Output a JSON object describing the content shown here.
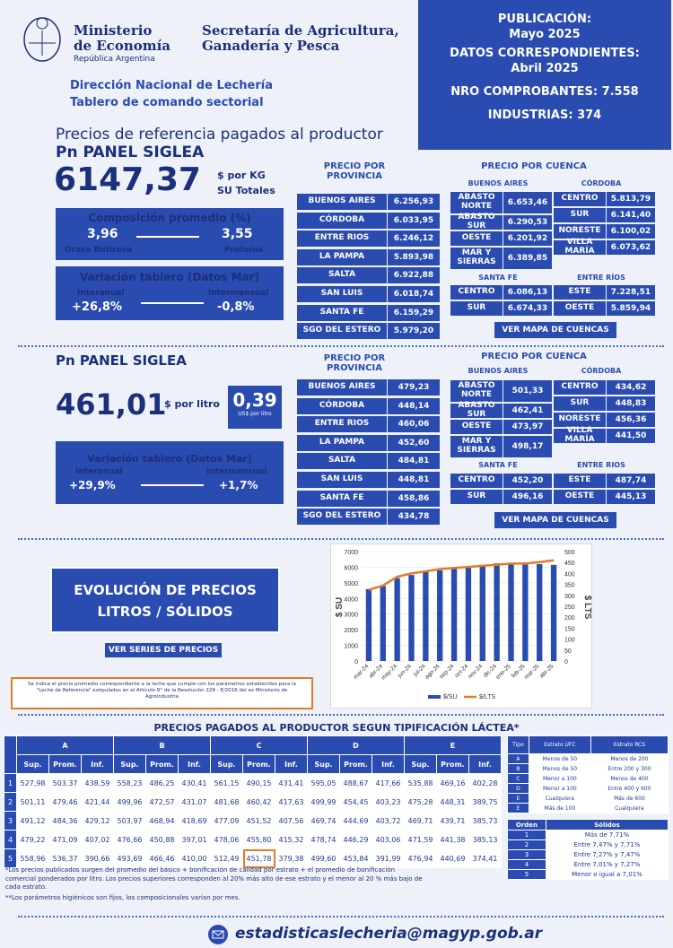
{
  "header": {
    "ministry": [
      "Ministerio",
      "de Economía"
    ],
    "republic": "República Argentina",
    "secretariat": [
      "Secretaría de Agricultura,",
      "Ganadería y Pesca"
    ],
    "direction": "Dirección Nacional de Lechería",
    "tablero": "Tablero de comando sectorial",
    "pub_label": "PUBLICACIÓN:",
    "pub_value": "Mayo 2025",
    "datos_label": "DATOS CORRESPONDIENTES:",
    "datos_value": "Abril 2025",
    "comprobantes": "NRO COMPROBANTES: 7.558",
    "industrias": "INDUSTRIAS: 374"
  },
  "section_title": "Precios de referencia pagados al productor",
  "solidos": {
    "panel_title": "Pn PANEL SIGLEA",
    "big_value": "6147,37",
    "unit": "$ por KG",
    "unit2": "SU Totales",
    "comp_title": "Composición promedio (%)",
    "grasa_val": "3,96",
    "grasa_lbl": "Grasa Butirosa",
    "prot_val": "3,55",
    "prot_lbl": "Proteína",
    "var_title": "Variación tablero (Datos Mar)",
    "ia_lbl": "Interanual",
    "ia_val": "+26,8%",
    "im_lbl": "Intermensual",
    "im_val": "-0,8%",
    "prov_title": "PRECIO POR PROVINCIA",
    "provinces": [
      {
        "name": "BUENOS AIRES",
        "value": "6.256,93"
      },
      {
        "name": "CÓRDOBA",
        "value": "6.033,95"
      },
      {
        "name": "ENTRE RIOS",
        "value": "6.246,12"
      },
      {
        "name": "LA PAMPA",
        "value": "5.893,98"
      },
      {
        "name": "SALTA",
        "value": "6.922,88"
      },
      {
        "name": "SAN LUIS",
        "value": "6.018,74"
      },
      {
        "name": "SANTA FE",
        "value": "6.159,29"
      },
      {
        "name": "SGO DEL ESTERO",
        "value": "5.979,20"
      }
    ],
    "cuenca_title": "PRECIO POR CUENCA",
    "ba_title": "BUENOS AIRES",
    "ba": [
      {
        "name": "ABASTO NORTE",
        "value": "6.653,46"
      },
      {
        "name": "ABASTO SUR",
        "value": "6.290,53"
      },
      {
        "name": "OESTE",
        "value": "6.201,92"
      },
      {
        "name": "MAR Y SIERRAS",
        "value": "6.389,85"
      }
    ],
    "cba_title": "CÓRDOBA",
    "cba": [
      {
        "name": "CENTRO",
        "value": "5.813,79"
      },
      {
        "name": "SUR",
        "value": "6.141,40"
      },
      {
        "name": "NORESTE",
        "value": "6.100,02"
      },
      {
        "name": "VILLA MARÍA",
        "value": "6.073,62"
      }
    ],
    "sf_title": "SANTA FE",
    "sf": [
      {
        "name": "CENTRO",
        "value": "6.086,13"
      },
      {
        "name": "SUR",
        "value": "6.674,33"
      }
    ],
    "er_title": "ENTRE RÍOS",
    "er": [
      {
        "name": "ESTE",
        "value": "7.228,51"
      },
      {
        "name": "OESTE",
        "value": "5.859,94"
      }
    ],
    "btn": "VER MAPA DE CUENCAS"
  },
  "litros": {
    "panel_title": "Pn PANEL SIGLEA",
    "big_value": "461,01",
    "unit": "$ por litro",
    "usd_val": "0,39",
    "usd_lbl": "US$ por litro",
    "var_title": "Variación tablero (Datos Mar)",
    "ia_lbl": "Interanual",
    "ia_val": "+29,9%",
    "im_lbl": "Intermensual",
    "im_val": "+1,7%",
    "prov_title": "PRECIO POR PROVINCIA",
    "provinces": [
      {
        "name": "BUENOS AIRES",
        "value": "479,23"
      },
      {
        "name": "CÓRDOBA",
        "value": "448,14"
      },
      {
        "name": "ENTRE RIOS",
        "value": "460,06"
      },
      {
        "name": "LA PAMPA",
        "value": "452,60"
      },
      {
        "name": "SALTA",
        "value": "484,81"
      },
      {
        "name": "SAN LUIS",
        "value": "448,81"
      },
      {
        "name": "SANTA FE",
        "value": "458,86"
      },
      {
        "name": "SGO DEL ESTERO",
        "value": "434,78"
      }
    ],
    "cuenca_title": "PRECIO POR CUENCA",
    "ba_title": "BUENOS AIRES",
    "ba": [
      {
        "name": "ABASTO NORTE",
        "value": "501,33"
      },
      {
        "name": "ABASTO SUR",
        "value": "462,41"
      },
      {
        "name": "OESTE",
        "value": "473,97"
      },
      {
        "name": "MAR Y SIERRAS",
        "value": "498,17"
      }
    ],
    "cba_title": "CÓRDOBA",
    "cba": [
      {
        "name": "CENTRO",
        "value": "434,62"
      },
      {
        "name": "SUR",
        "value": "448,83"
      },
      {
        "name": "NORESTE",
        "value": "456,36"
      },
      {
        "name": "VILLA MARÍA",
        "value": "441,50"
      }
    ],
    "sf_title": "SANTA FE",
    "sf": [
      {
        "name": "CENTRO",
        "value": "452,20"
      },
      {
        "name": "SUR",
        "value": "496,16"
      }
    ],
    "er_title": "ENTRE RIOS",
    "er": [
      {
        "name": "ESTE",
        "value": "487,74"
      },
      {
        "name": "OESTE",
        "value": "445,13"
      }
    ],
    "btn": "VER MAPA DE CUENCAS"
  },
  "evolucion": {
    "title": [
      "EVOLUCIÓN DE PRECIOS",
      "LITROS / SÓLIDOS"
    ],
    "btn": "VER SERIES DE PRECIOS",
    "note": "Se indica el precio promedio correspondiente a la leche que cumple con los parámetros establecidos para la \"Leche de Referencia\" estipulados en el Artículo 9° de la Resolución 229 - E/2016 del ex Ministerio de Agroindustria"
  },
  "chart_data": {
    "type": "bar",
    "categories": [
      "mar-24",
      "abr-24",
      "may-24",
      "jun-24",
      "jul-24",
      "ago-24",
      "sep-24",
      "oct-24",
      "nov-24",
      "dic-24",
      "ene-25",
      "feb-25",
      "mar-25",
      "abr-25"
    ],
    "series": [
      {
        "name": "$/SU",
        "axis": "left",
        "values": [
          4600,
          4800,
          5300,
          5500,
          5700,
          5800,
          5900,
          6000,
          6150,
          6250,
          6250,
          6300,
          6200,
          6150
        ]
      },
      {
        "name": "$/LTS",
        "axis": "right",
        "values": [
          325,
          345,
          385,
          400,
          410,
          420,
          425,
          430,
          435,
          440,
          445,
          445,
          452,
          460
        ]
      }
    ],
    "yleft": {
      "label": "$ SU",
      "ticks": [
        "0",
        "1000",
        "2000",
        "3000",
        "4000",
        "5000",
        "6000",
        "7000"
      ],
      "lim": [
        0,
        7000
      ]
    },
    "yright": {
      "label": "$ LTS",
      "ticks": [
        "0",
        "50",
        "100",
        "150",
        "200",
        "250",
        "300",
        "350",
        "400",
        "450",
        "500"
      ],
      "lim": [
        0,
        500
      ]
    },
    "colors": {
      "bar": "#2a4bb0",
      "line": "#e07b2a"
    }
  },
  "tipificacion": {
    "title": "PRECIOS PAGADOS AL PRODUCTOR SEGUN TIPIFICACIÓN LÁCTEA*",
    "groups": [
      "A",
      "B",
      "C",
      "D",
      "E"
    ],
    "subheads": [
      "Sup.",
      "Prom.",
      "Inf."
    ],
    "rows": [
      [
        "1",
        "527,98",
        "503,37",
        "438,59",
        "558,23",
        "486,25",
        "430,41",
        "561,15",
        "490,15",
        "431,41",
        "595,05",
        "488,67",
        "417,66",
        "535,88",
        "469,16",
        "402,28"
      ],
      [
        "2",
        "501,11",
        "479,46",
        "421,44",
        "499,96",
        "472,57",
        "431,07",
        "481,68",
        "460,42",
        "417,63",
        "499,99",
        "454,45",
        "403,23",
        "475,28",
        "448,31",
        "389,75"
      ],
      [
        "3",
        "491,12",
        "484,36",
        "429,12",
        "503,97",
        "468,94",
        "418,69",
        "477,09",
        "451,52",
        "407,56",
        "469,74",
        "444,69",
        "403,72",
        "469,71",
        "439,71",
        "385,73"
      ],
      [
        "4",
        "479,22",
        "471,09",
        "407,02",
        "476,66",
        "450,88",
        "397,01",
        "478,06",
        "455,80",
        "415,32",
        "478,74",
        "446,29",
        "403,06",
        "471,59",
        "441,38",
        "385,13"
      ],
      [
        "5",
        "558,96",
        "536,37",
        "390,66",
        "493,69",
        "466,46",
        "410,00",
        "512,49",
        "451,78",
        "379,38",
        "499,60",
        "453,84",
        "391,99",
        "476,94",
        "440,69",
        "374,41"
      ]
    ],
    "tipo_head": [
      "Tipo",
      "Estrato UFC",
      "Estrato RCS"
    ],
    "tipo_rows": [
      [
        "A",
        "Menos de 50",
        "Menos de 200"
      ],
      [
        "B",
        "Menos de 50",
        "Entre 200 y 300"
      ],
      [
        "C",
        "Menor a 100",
        "Menos de 400"
      ],
      [
        "D",
        "Menor a 100",
        "Entre 400 y 600"
      ],
      [
        "E",
        "Cualquiera",
        "Más de 600"
      ],
      [
        "E",
        "Más de 100",
        "Cualquiera"
      ]
    ],
    "orden_head": [
      "Orden",
      "Sólidos"
    ],
    "orden_rows": [
      [
        "1",
        "Más de 7,71%"
      ],
      [
        "2",
        "Entre 7,47% y 7,71%"
      ],
      [
        "3",
        "Entre 7,27% y 7,47%"
      ],
      [
        "4",
        "Entre 7,01% y 7,27%"
      ],
      [
        "5",
        "Menor o igual a 7,01%"
      ]
    ],
    "footnote1": "*Los precios publicados surgen del promedio del básico + bonificación de calidad por estrato + el promedio de bonificación comercial ponderados por litro. Los precios superiores corresponden al 20% más alto de ese estrato y el menor al 20 % más bajo de cada estrato.",
    "footnote2": "**Los parámetros higiénicos son fijos, los composicionales varían por mes."
  },
  "footer": {
    "email": "estadisticaslecheria@magyp.gob.ar"
  }
}
